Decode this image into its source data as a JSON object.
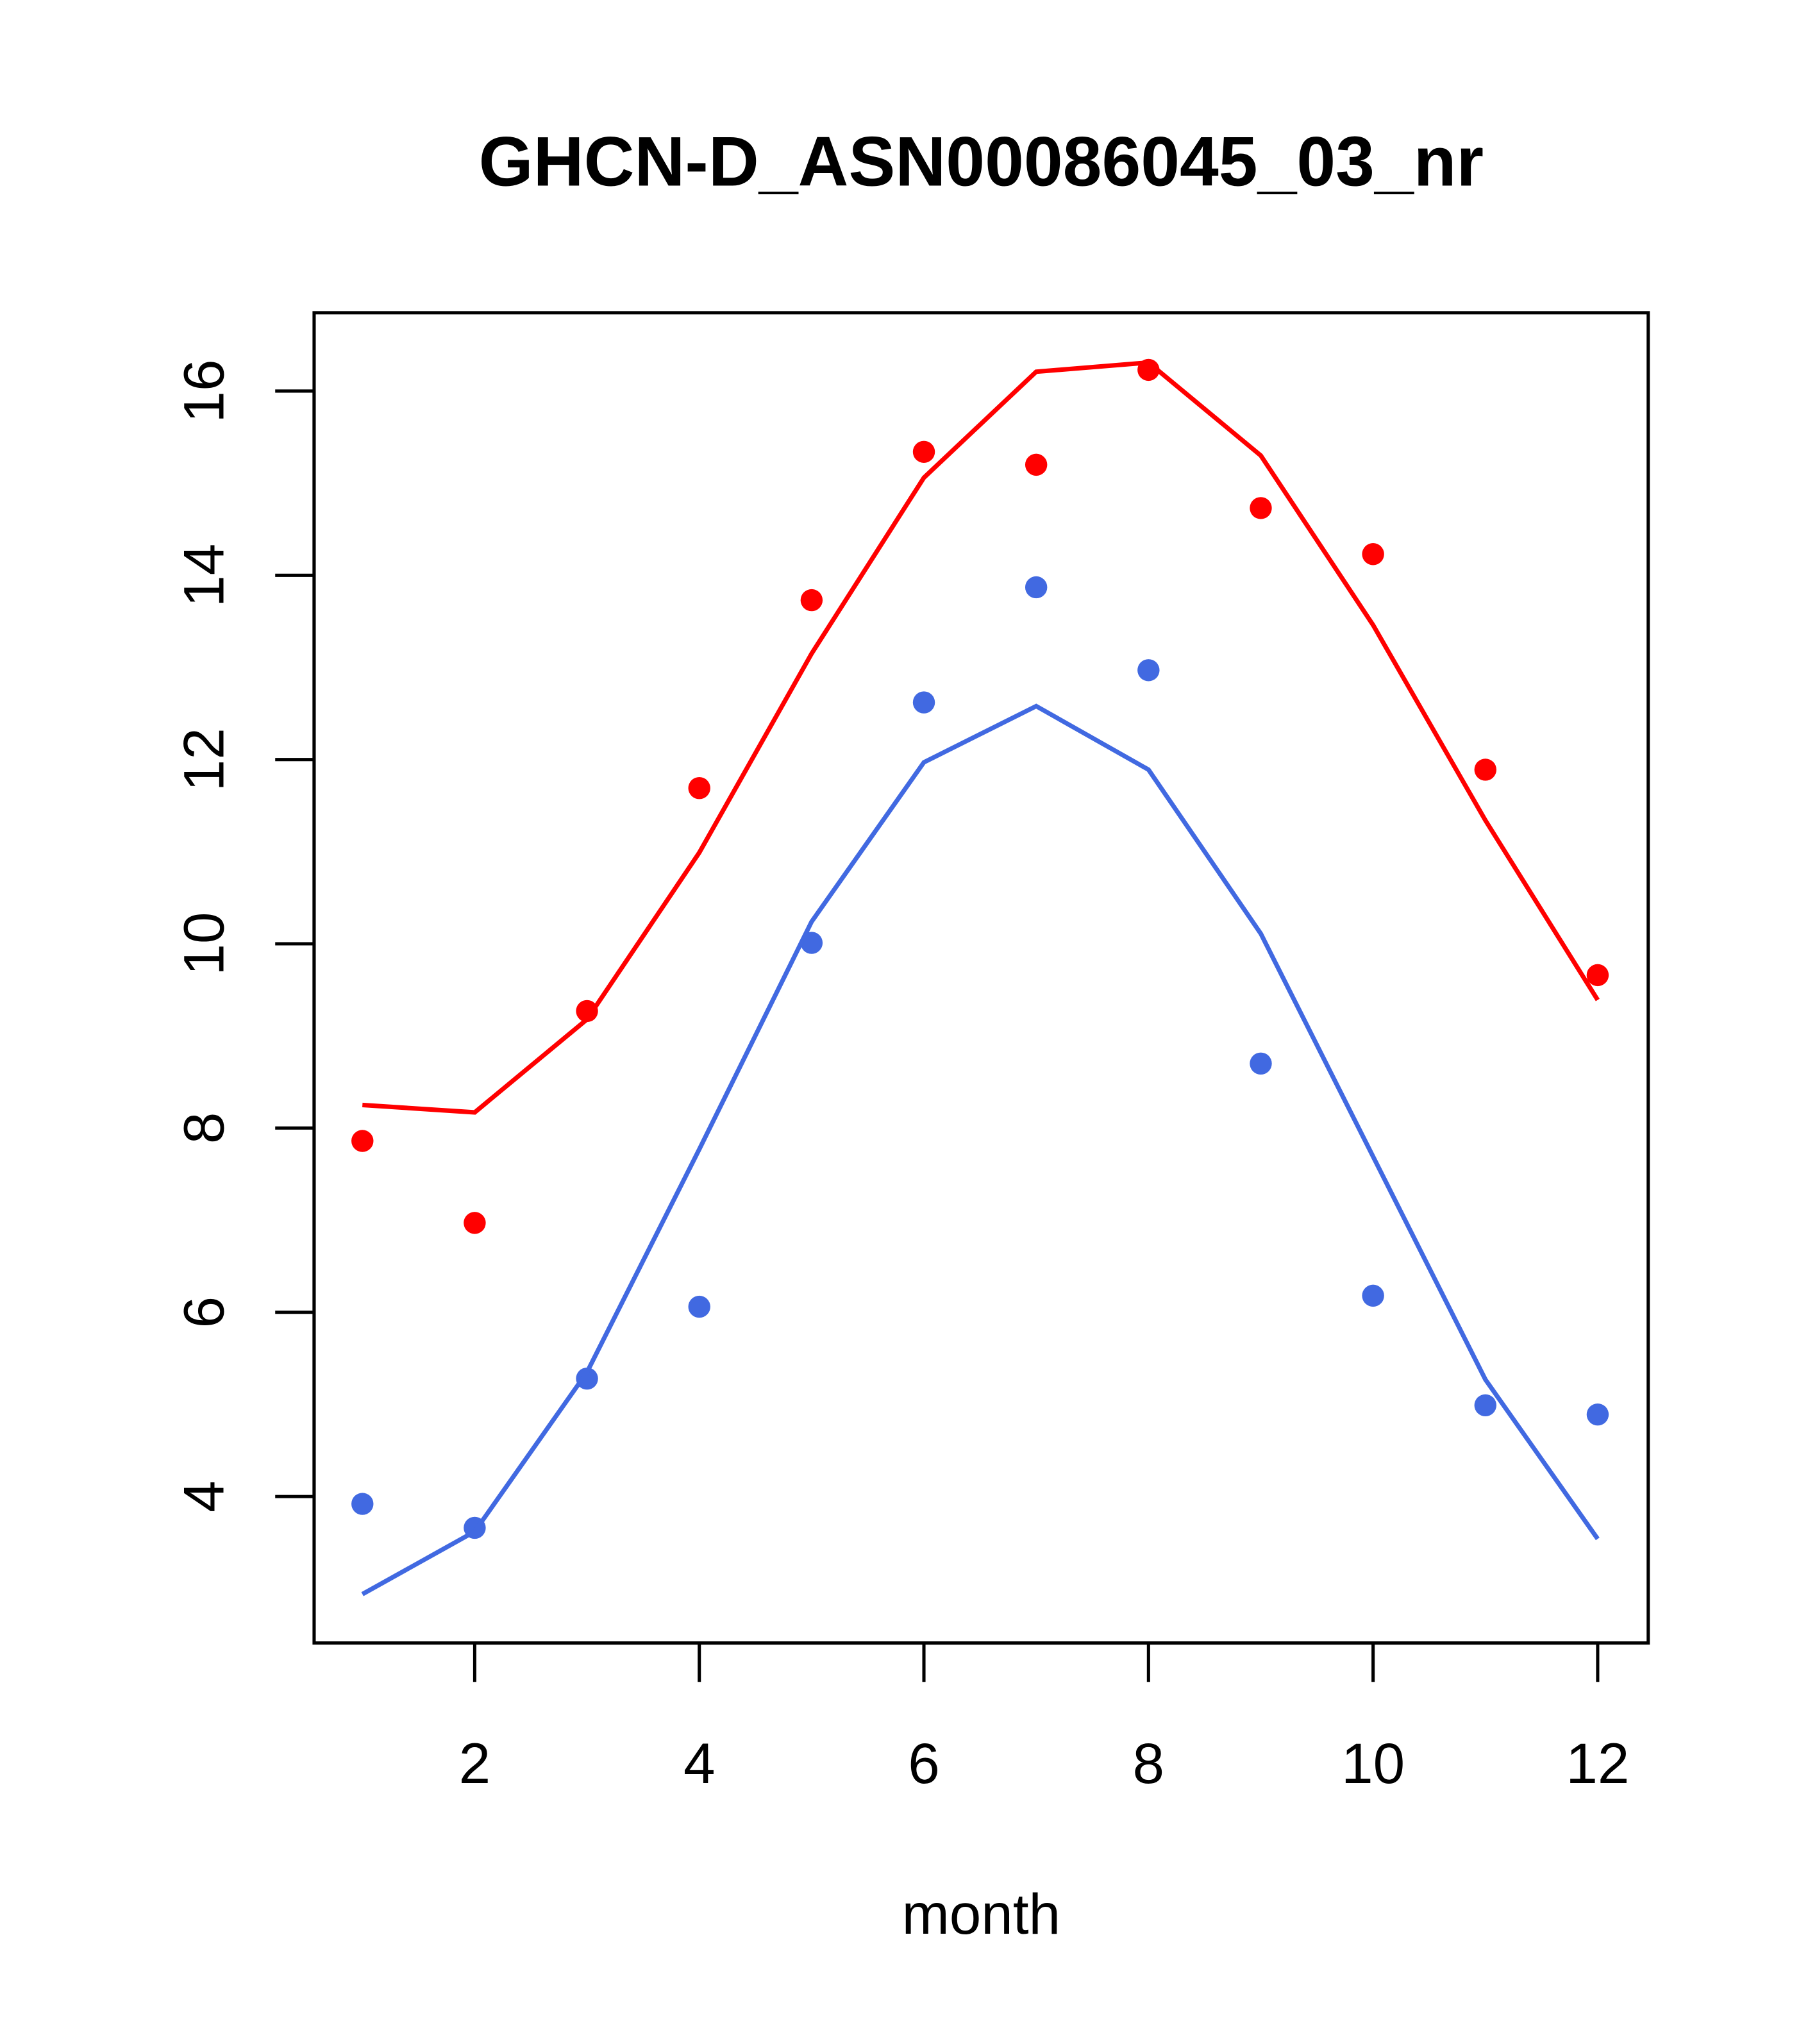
{
  "chart_data": {
    "type": "line",
    "title": "GHCN-D_ASN00086045_03_nr",
    "xlabel": "month",
    "ylabel": "",
    "xlim": [
      0.57,
      12.45
    ],
    "ylim": [
      2.41,
      16.85
    ],
    "xticks": [
      2,
      4,
      6,
      8,
      10,
      12
    ],
    "yticks": [
      4,
      6,
      8,
      10,
      12,
      14,
      16
    ],
    "grid": false,
    "x": [
      1,
      2,
      3,
      4,
      5,
      6,
      7,
      8,
      9,
      10,
      11,
      12
    ],
    "series": [
      {
        "name": "red points",
        "kind": "points",
        "color": "#ff0000",
        "values": [
          7.86,
          6.97,
          9.27,
          11.69,
          13.73,
          15.34,
          15.2,
          16.23,
          14.73,
          14.23,
          11.89,
          9.66
        ]
      },
      {
        "name": "red line",
        "kind": "line",
        "color": "#ff0000",
        "values": [
          8.25,
          8.17,
          9.18,
          10.99,
          13.15,
          15.06,
          16.21,
          16.31,
          15.3,
          13.46,
          11.34,
          9.39
        ]
      },
      {
        "name": "blue points",
        "kind": "points",
        "color": "#4169e1",
        "values": [
          3.92,
          3.66,
          5.28,
          6.06,
          10.01,
          12.62,
          13.87,
          12.97,
          8.7,
          6.18,
          4.99,
          4.89
        ]
      },
      {
        "name": "blue line",
        "kind": "line",
        "color": "#4169e1",
        "values": [
          2.94,
          3.62,
          5.35,
          7.77,
          10.24,
          11.97,
          12.58,
          11.89,
          10.11,
          7.69,
          5.27,
          3.54
        ]
      }
    ]
  }
}
